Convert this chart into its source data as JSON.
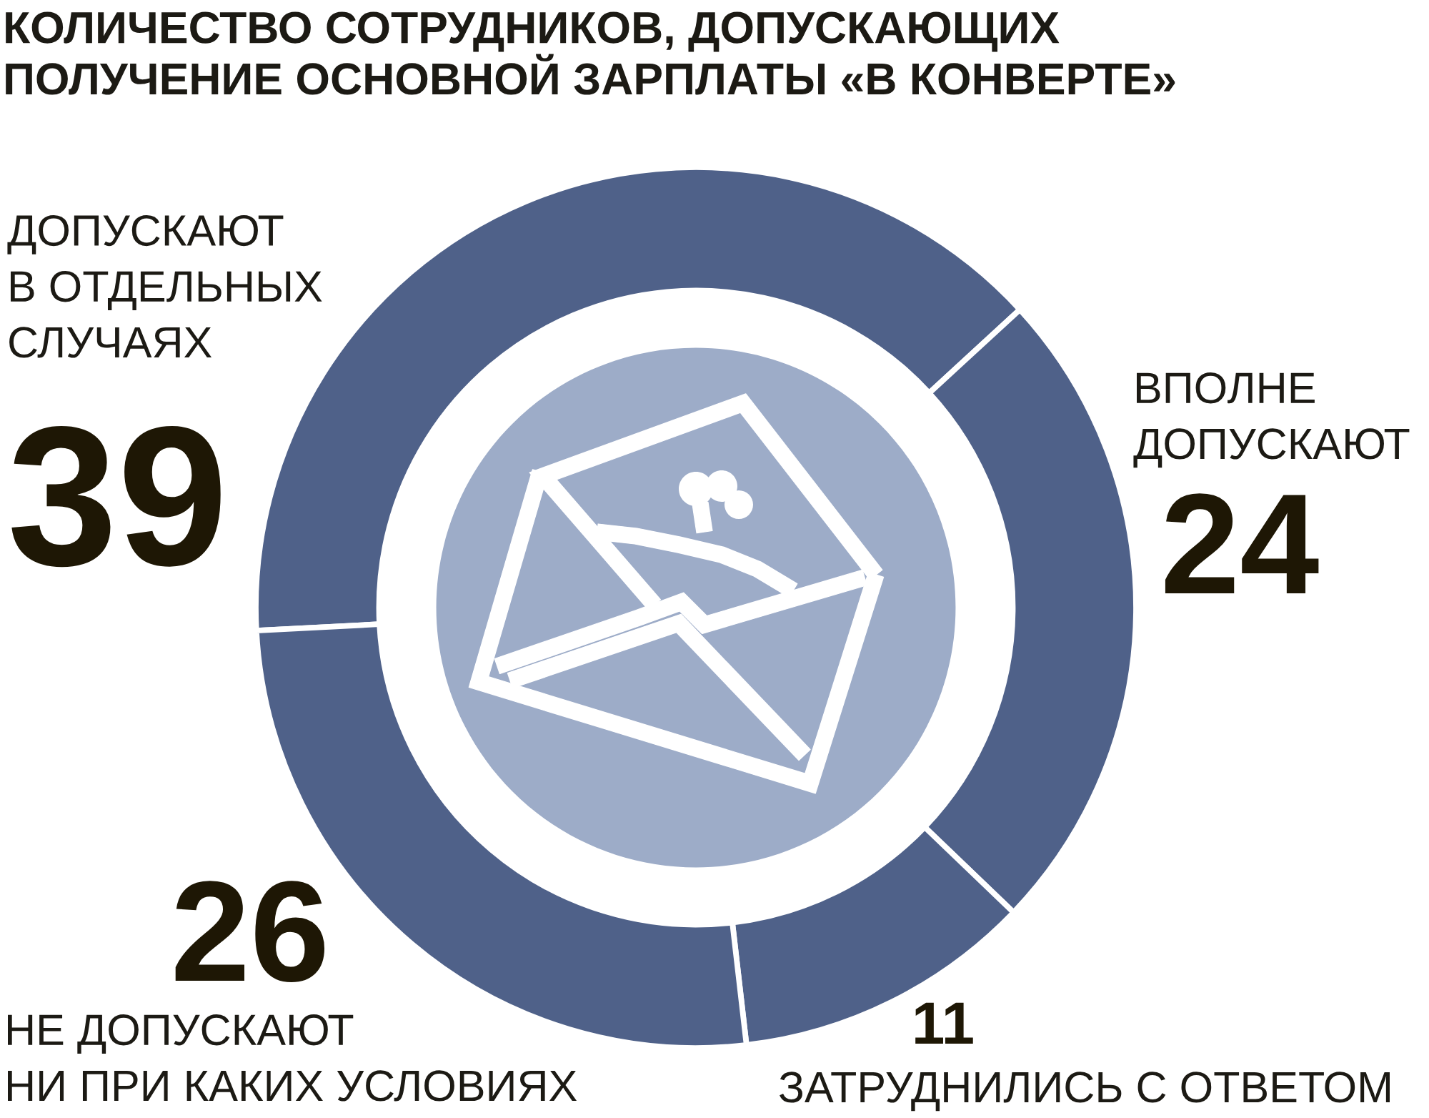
{
  "chart_data": {
    "type": "donut",
    "title": "КОЛИЧЕСТВО СОТРУДНИКОВ, ДОПУСКАЮЩИХ\nПОЛУЧЕНИЕ ОСНОВНОЙ ЗАРПЛАТЫ «В КОНВЕРТЕ»",
    "categories": [
      "ДОПУСКАЮТ\nВ ОТДЕЛЬНЫХ\nСЛУЧАЯХ",
      "ВПОЛНЕ\nДОПУСКАЮТ",
      "ЗАТРУДНИЛИСЬ С ОТВЕТОМ",
      "НЕ ДОПУСКАЮТ\nНИ ПРИ КАКИХ УСЛОВИЯХ"
    ],
    "values": [
      39,
      24,
      11,
      26
    ],
    "colors": [
      "#4f6189",
      "#4f6189",
      "#4f6189",
      "#4f6189"
    ],
    "data_labels": true,
    "legend": false
  }
}
